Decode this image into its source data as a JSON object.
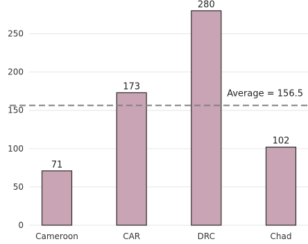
{
  "chart_data": {
    "type": "bar",
    "title": "",
    "xlabel": "",
    "ylabel": "",
    "categories": [
      "Cameroon",
      "CAR",
      "DRC",
      "Chad"
    ],
    "values": [
      71,
      173,
      280,
      102
    ],
    "data_labels": [
      "71",
      "173",
      "280",
      "102"
    ],
    "ylim": [
      0,
      285
    ],
    "yticks": [
      0,
      50,
      100,
      150,
      200,
      250
    ],
    "grid": "horizontal",
    "bar_color": "#c9a4b4",
    "bar_edge_color": "#2b2b2b",
    "reference_line": {
      "value": 156.5,
      "label": "Average = 156.5",
      "style": "dashed",
      "color": "#808080"
    }
  }
}
